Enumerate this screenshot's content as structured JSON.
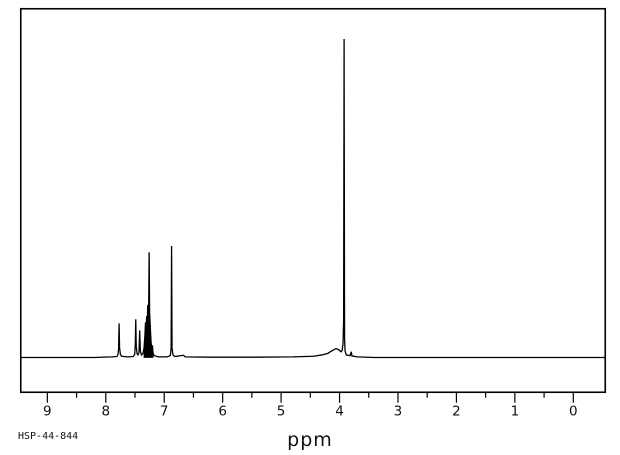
{
  "page": {
    "background_color": "#ffffff",
    "line_color": "#000000"
  },
  "footer": {
    "left_label": "HSP-44-844"
  },
  "chart_data": {
    "type": "line",
    "title": "",
    "subtitle": "1H NMR spectrum trace in a rectangular frame, single black trace on white, no gridlines, no legend",
    "xlabel": "ppm",
    "ylabel": "",
    "x_axis": {
      "direction": "reversed",
      "range_left_ppm": 9.45,
      "range_right_ppm": -0.55,
      "ticks_major": [
        9,
        8,
        7,
        6,
        5,
        4,
        3,
        2,
        1,
        0
      ],
      "ticks_minor": [
        8.5,
        7.5,
        6.5,
        5.5,
        4.5,
        3.5,
        2.5,
        1.5,
        0.5
      ]
    },
    "peaks": [
      {
        "ppm": 7.77,
        "rel_height": 0.11,
        "shape": "sharp singlet"
      },
      {
        "ppm": 7.49,
        "rel_height": 0.12,
        "shape": "sharp singlet"
      },
      {
        "ppm": 7.42,
        "rel_height": 0.09,
        "shape": "sharp singlet"
      },
      {
        "ppm": 7.26,
        "rel_height": 0.33,
        "shape": "dense multiplet (filled cluster 7.34-7.19)"
      },
      {
        "ppm": 6.87,
        "rel_height": 0.35,
        "shape": "sharp singlet"
      },
      {
        "ppm": 4.06,
        "rel_height": 0.03,
        "shape": "broad hump"
      },
      {
        "ppm": 3.92,
        "rel_height": 1.0,
        "shape": "tall sharp singlet"
      },
      {
        "ppm": 3.8,
        "rel_height": 0.02,
        "shape": "tiny spike"
      }
    ],
    "filled_region_ppm": [
      7.345,
      7.19
    ],
    "trace": [
      [
        9.45,
        0.0
      ],
      [
        8.2,
        0.0
      ],
      [
        7.9,
        0.002
      ],
      [
        7.81,
        0.003
      ],
      [
        7.79,
        0.01
      ],
      [
        7.78,
        0.03
      ],
      [
        7.772,
        0.107
      ],
      [
        7.764,
        0.03
      ],
      [
        7.75,
        0.01
      ],
      [
        7.73,
        0.004
      ],
      [
        7.62,
        0.002
      ],
      [
        7.53,
        0.003
      ],
      [
        7.505,
        0.01
      ],
      [
        7.495,
        0.04
      ],
      [
        7.487,
        0.12
      ],
      [
        7.479,
        0.035
      ],
      [
        7.465,
        0.012
      ],
      [
        7.45,
        0.008
      ],
      [
        7.432,
        0.015
      ],
      [
        7.42,
        0.085
      ],
      [
        7.408,
        0.02
      ],
      [
        7.39,
        0.008
      ],
      [
        7.365,
        0.012
      ],
      [
        7.345,
        0.03
      ],
      [
        7.33,
        0.07
      ],
      [
        7.32,
        0.11
      ],
      [
        7.31,
        0.09
      ],
      [
        7.3,
        0.13
      ],
      [
        7.29,
        0.1
      ],
      [
        7.282,
        0.165
      ],
      [
        7.274,
        0.12
      ],
      [
        7.266,
        0.14
      ],
      [
        7.258,
        0.33
      ],
      [
        7.25,
        0.14
      ],
      [
        7.242,
        0.11
      ],
      [
        7.232,
        0.07
      ],
      [
        7.222,
        0.04
      ],
      [
        7.212,
        0.03
      ],
      [
        7.202,
        0.038
      ],
      [
        7.192,
        0.015
      ],
      [
        7.175,
        0.006
      ],
      [
        7.1,
        0.002
      ],
      [
        6.95,
        0.002
      ],
      [
        6.895,
        0.006
      ],
      [
        6.882,
        0.03
      ],
      [
        6.874,
        0.35
      ],
      [
        6.866,
        0.03
      ],
      [
        6.85,
        0.008
      ],
      [
        6.82,
        0.003
      ],
      [
        6.67,
        0.007
      ],
      [
        6.64,
        0.002
      ],
      [
        6.2,
        0.001
      ],
      [
        5.5,
        0.001
      ],
      [
        4.8,
        0.002
      ],
      [
        4.45,
        0.004
      ],
      [
        4.3,
        0.008
      ],
      [
        4.2,
        0.013
      ],
      [
        4.12,
        0.022
      ],
      [
        4.06,
        0.028
      ],
      [
        4.01,
        0.024
      ],
      [
        3.975,
        0.018
      ],
      [
        3.955,
        0.022
      ],
      [
        3.94,
        0.045
      ],
      [
        3.93,
        0.12
      ],
      [
        3.922,
        1.0
      ],
      [
        3.914,
        0.06
      ],
      [
        3.905,
        0.02
      ],
      [
        3.885,
        0.008
      ],
      [
        3.82,
        0.006
      ],
      [
        3.8,
        0.018
      ],
      [
        3.788,
        0.005
      ],
      [
        3.7,
        0.002
      ],
      [
        3.4,
        0.0
      ],
      [
        2.5,
        0.0
      ],
      [
        1.5,
        0.0
      ],
      [
        0.5,
        0.0
      ],
      [
        -0.55,
        0.0
      ]
    ]
  }
}
